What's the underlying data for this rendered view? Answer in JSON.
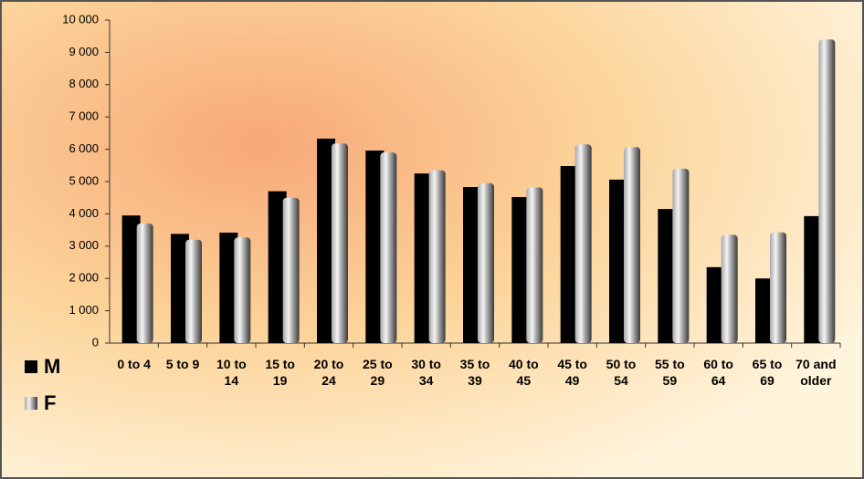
{
  "chart_data": {
    "type": "bar",
    "categories": [
      "0 to 4",
      "5 to 9",
      "10 to 14",
      "15 to 19",
      "20 to 24",
      "25 to 29",
      "30 to 34",
      "35 to 39",
      "40 to 45",
      "45 to 49",
      "50 to 54",
      "55 to 59",
      "60 to 64",
      "65 to 69",
      "70 and older"
    ],
    "series": [
      {
        "name": "M",
        "color": "#000000",
        "values": [
          3950,
          3380,
          3420,
          4700,
          6330,
          5960,
          5250,
          4830,
          4520,
          5480,
          5060,
          4150,
          2350,
          2000,
          3930
        ]
      },
      {
        "name": "F",
        "color": "#a8a8a8",
        "values": [
          3700,
          3200,
          3270,
          4500,
          6180,
          5900,
          5350,
          4950,
          4820,
          6150,
          6070,
          5400,
          3350,
          3430,
          9400
        ]
      }
    ],
    "ylim": [
      0,
      10000
    ],
    "yticks": [
      0,
      {
        "value": 1000,
        "label": "1 000"
      },
      {
        "value": 2000,
        "label": "2 000"
      },
      {
        "value": 3000,
        "label": "3 000"
      },
      {
        "value": 4000,
        "label": "4 000"
      },
      {
        "value": 5000,
        "label": "5 000"
      },
      {
        "value": 6000,
        "label": "6 000"
      },
      {
        "value": 7000,
        "label": "7 000"
      },
      {
        "value": 8000,
        "label": "8 000"
      },
      {
        "value": 9000,
        "label": "9 000"
      },
      {
        "value": 10000,
        "label": "10 000"
      }
    ],
    "grid": false,
    "legend": "left"
  }
}
